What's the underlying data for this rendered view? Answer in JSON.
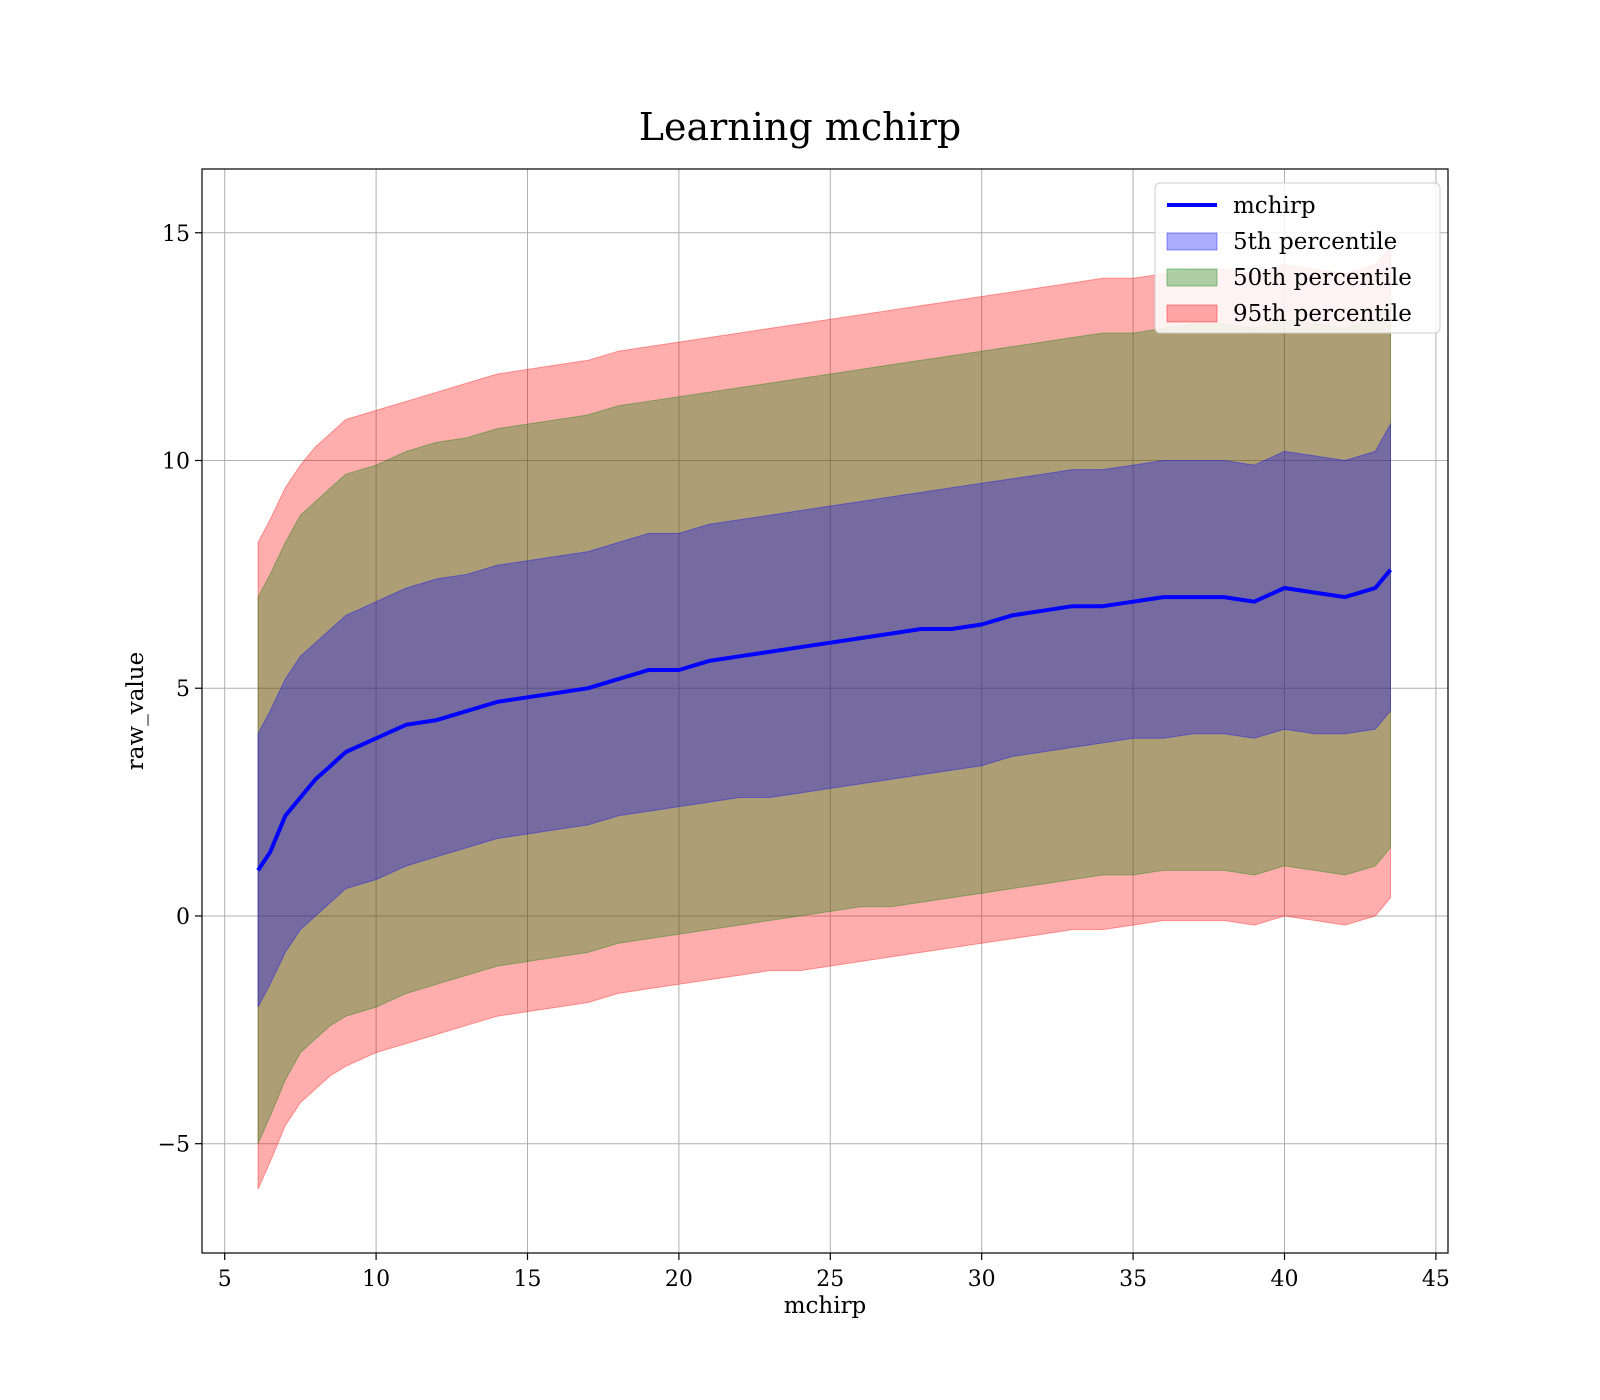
{
  "chart_data": {
    "type": "line",
    "title": "Learning mchirp",
    "xlabel": "mchirp",
    "ylabel": "raw_value",
    "xlim": [
      4.25,
      45.4
    ],
    "ylim": [
      -7.4,
      16.4
    ],
    "x_ticks": [
      5,
      10,
      15,
      20,
      25,
      30,
      35,
      40,
      45
    ],
    "y_ticks": [
      -5,
      0,
      5,
      10,
      15
    ],
    "x_tick_labels": [
      "5",
      "10",
      "15",
      "20",
      "25",
      "30",
      "35",
      "40",
      "45"
    ],
    "y_tick_labels": [
      "−5",
      "0",
      "5",
      "10",
      "15"
    ],
    "grid": true,
    "legend_position": "top-right",
    "x": [
      6.1,
      6.5,
      7.0,
      7.5,
      8.0,
      8.5,
      9.0,
      10.0,
      11.0,
      12.0,
      13.0,
      14.0,
      15.0,
      16.0,
      17.0,
      18.0,
      19.0,
      20.0,
      21.0,
      22.0,
      23.0,
      24.0,
      25.0,
      26.0,
      27.0,
      28.0,
      29.0,
      30.0,
      31.0,
      32.0,
      33.0,
      34.0,
      35.0,
      36.0,
      37.0,
      38.0,
      39.0,
      40.0,
      41.0,
      42.0,
      43.0,
      43.5
    ],
    "series": [
      {
        "name": "mchirp",
        "kind": "line",
        "color": "#0000ff",
        "values": [
          1.0,
          1.4,
          2.2,
          2.6,
          3.0,
          3.3,
          3.6,
          3.9,
          4.2,
          4.3,
          4.5,
          4.7,
          4.8,
          4.9,
          5.0,
          5.2,
          5.4,
          5.4,
          5.6,
          5.7,
          5.8,
          5.9,
          6.0,
          6.1,
          6.2,
          6.3,
          6.3,
          6.4,
          6.6,
          6.7,
          6.8,
          6.8,
          6.9,
          7.0,
          7.0,
          7.0,
          6.9,
          7.2,
          7.1,
          7.0,
          7.2,
          7.6
        ]
      },
      {
        "name": "5th percentile",
        "kind": "band",
        "color": "#0000ff",
        "lower": [
          -2.0,
          -1.5,
          -0.8,
          -0.3,
          0.0,
          0.3,
          0.6,
          0.8,
          1.1,
          1.3,
          1.5,
          1.7,
          1.8,
          1.9,
          2.0,
          2.2,
          2.3,
          2.4,
          2.5,
          2.6,
          2.6,
          2.7,
          2.8,
          2.9,
          3.0,
          3.1,
          3.2,
          3.3,
          3.5,
          3.6,
          3.7,
          3.8,
          3.9,
          3.9,
          4.0,
          4.0,
          3.9,
          4.1,
          4.0,
          4.0,
          4.1,
          4.5
        ],
        "upper": [
          4.0,
          4.5,
          5.2,
          5.7,
          6.0,
          6.3,
          6.6,
          6.9,
          7.2,
          7.4,
          7.5,
          7.7,
          7.8,
          7.9,
          8.0,
          8.2,
          8.4,
          8.4,
          8.6,
          8.7,
          8.8,
          8.9,
          9.0,
          9.1,
          9.2,
          9.3,
          9.4,
          9.5,
          9.6,
          9.7,
          9.8,
          9.8,
          9.9,
          10.0,
          10.0,
          10.0,
          9.9,
          10.2,
          10.1,
          10.0,
          10.2,
          10.8
        ]
      },
      {
        "name": "50th percentile",
        "kind": "band",
        "color": "#008000",
        "lower": [
          -5.0,
          -4.4,
          -3.6,
          -3.0,
          -2.7,
          -2.4,
          -2.2,
          -2.0,
          -1.7,
          -1.5,
          -1.3,
          -1.1,
          -1.0,
          -0.9,
          -0.8,
          -0.6,
          -0.5,
          -0.4,
          -0.3,
          -0.2,
          -0.1,
          0.0,
          0.1,
          0.2,
          0.2,
          0.3,
          0.4,
          0.5,
          0.6,
          0.7,
          0.8,
          0.9,
          0.9,
          1.0,
          1.0,
          1.0,
          0.9,
          1.1,
          1.0,
          0.9,
          1.1,
          1.5
        ],
        "upper": [
          7.0,
          7.5,
          8.2,
          8.8,
          9.1,
          9.4,
          9.7,
          9.9,
          10.2,
          10.4,
          10.5,
          10.7,
          10.8,
          10.9,
          11.0,
          11.2,
          11.3,
          11.4,
          11.5,
          11.6,
          11.7,
          11.8,
          11.9,
          12.0,
          12.1,
          12.2,
          12.3,
          12.4,
          12.5,
          12.6,
          12.7,
          12.8,
          12.8,
          12.9,
          13.0,
          13.0,
          12.9,
          13.1,
          13.0,
          12.9,
          13.1,
          13.5
        ]
      },
      {
        "name": "95th percentile",
        "kind": "band",
        "color": "#ff0000",
        "lower": [
          -6.0,
          -5.4,
          -4.6,
          -4.1,
          -3.8,
          -3.5,
          -3.3,
          -3.0,
          -2.8,
          -2.6,
          -2.4,
          -2.2,
          -2.1,
          -2.0,
          -1.9,
          -1.7,
          -1.6,
          -1.5,
          -1.4,
          -1.3,
          -1.2,
          -1.2,
          -1.1,
          -1.0,
          -0.9,
          -0.8,
          -0.7,
          -0.6,
          -0.5,
          -0.4,
          -0.3,
          -0.3,
          -0.2,
          -0.1,
          -0.1,
          -0.1,
          -0.2,
          0.0,
          -0.1,
          -0.2,
          0.0,
          0.4
        ],
        "upper": [
          8.2,
          8.7,
          9.4,
          9.9,
          10.3,
          10.6,
          10.9,
          11.1,
          11.3,
          11.5,
          11.7,
          11.9,
          12.0,
          12.1,
          12.2,
          12.4,
          12.5,
          12.6,
          12.7,
          12.8,
          12.9,
          13.0,
          13.1,
          13.2,
          13.3,
          13.4,
          13.5,
          13.6,
          13.7,
          13.8,
          13.9,
          14.0,
          14.0,
          14.1,
          14.2,
          14.2,
          14.1,
          14.3,
          14.2,
          14.1,
          14.3,
          14.7
        ]
      }
    ]
  }
}
